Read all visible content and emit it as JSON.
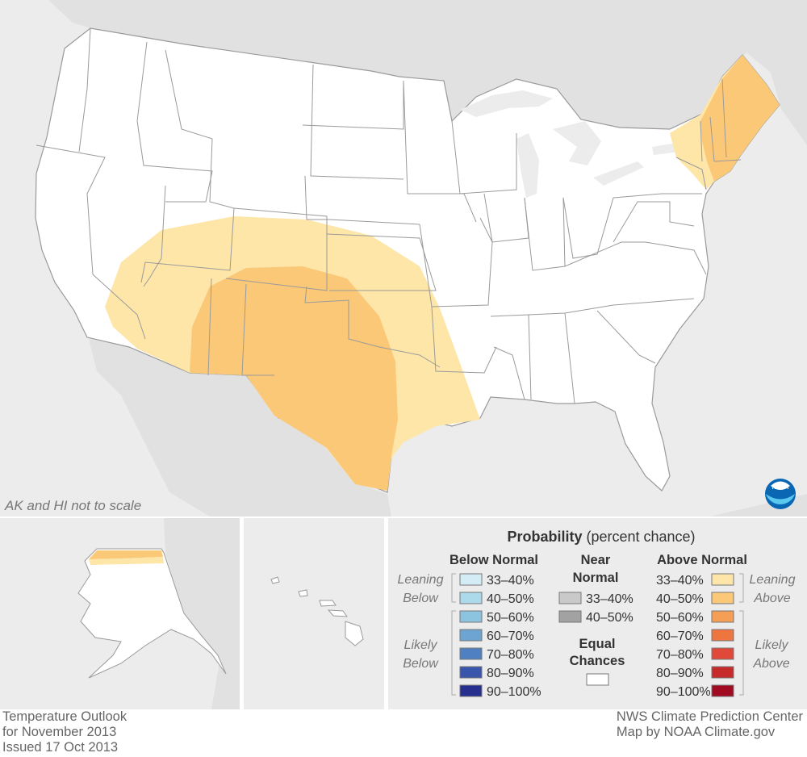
{
  "map": {
    "scale_note": "AK and HI not to scale",
    "logo_text": "NOAA",
    "colors": {
      "background": "#ececec",
      "land_other": "#e1e1e1",
      "us_land": "#ffffff",
      "state_border": "#9a9a9a",
      "leaning_above": "#fde6a8",
      "above_40_50": "#fbc878",
      "above_50_60": "#f59e55"
    }
  },
  "legend": {
    "title_bold": "Probability",
    "title_rest": " (percent chance)",
    "below": {
      "header": "Below Normal",
      "leaning_label_1": "Leaning",
      "leaning_label_2": "Below",
      "likely_label_1": "Likely",
      "likely_label_2": "Below",
      "items": [
        {
          "label": "33–40%",
          "color": "#d4ecf5"
        },
        {
          "label": "40–50%",
          "color": "#acdaea"
        },
        {
          "label": "50–60%",
          "color": "#8cc3df"
        },
        {
          "label": "60–70%",
          "color": "#6da4d1"
        },
        {
          "label": "70–80%",
          "color": "#4f80c2"
        },
        {
          "label": "80–90%",
          "color": "#3a55ac"
        },
        {
          "label": "90–100%",
          "color": "#262f8e"
        }
      ]
    },
    "near": {
      "header_1": "Near",
      "header_2": "Normal",
      "items": [
        {
          "label": "33–40%",
          "color": "#c9c9c9"
        },
        {
          "label": "40–50%",
          "color": "#a2a2a2"
        }
      ],
      "equal_1": "Equal",
      "equal_2": "Chances"
    },
    "above": {
      "header": "Above Normal",
      "leaning_label_1": "Leaning",
      "leaning_label_2": "Above",
      "likely_label_1": "Likely",
      "likely_label_2": "Above",
      "items": [
        {
          "label": "33–40%",
          "color": "#fde6a8"
        },
        {
          "label": "40–50%",
          "color": "#fbc878"
        },
        {
          "label": "50–60%",
          "color": "#f59e55"
        },
        {
          "label": "60–70%",
          "color": "#ef7540"
        },
        {
          "label": "70–80%",
          "color": "#e0493a"
        },
        {
          "label": "80–90%",
          "color": "#c72a2b"
        },
        {
          "label": "90–100%",
          "color": "#a00a23"
        }
      ]
    }
  },
  "footer": {
    "line1": "Temperature Outlook",
    "line2": "for November 2013",
    "line3": "Issued 17 Oct 2013",
    "credit1": "NWS Climate Prediction Center",
    "credit2": "Map by NOAA Climate.gov"
  }
}
